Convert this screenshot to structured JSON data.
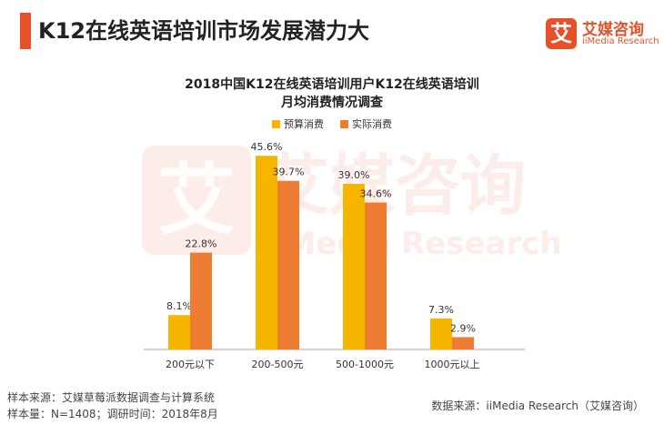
{
  "header": {
    "title": "K12在线英语培训市场发展潜力大",
    "logo_mark": "艾",
    "logo_cn": "艾媒咨询",
    "logo_en": "iiMedia Research"
  },
  "watermark": {
    "mark": "艾",
    "cn": "艾媒咨询",
    "en": "iiMedia Research"
  },
  "colors": {
    "accent": "#e8502a",
    "budget": "#f7b500",
    "actual": "#ee7c33"
  },
  "chart_data": {
    "type": "bar",
    "title_line1": "2018中国K12在线英语培训用户K12在线英语培训",
    "title_line2": "月均消费情况调查",
    "categories": [
      "200元以下",
      "200-500元",
      "500-1000元",
      "1000元以上"
    ],
    "series": [
      {
        "name": "预算消费",
        "values": [
          8.1,
          45.6,
          39.0,
          7.3
        ],
        "labels": [
          "8.1%",
          "45.6%",
          "39.0%",
          "7.3%"
        ]
      },
      {
        "name": "实际消费",
        "values": [
          22.8,
          39.7,
          34.6,
          2.9
        ],
        "labels": [
          "22.8%",
          "39.7%",
          "34.6%",
          "2.9%"
        ]
      }
    ],
    "ylim": [
      0,
      48
    ],
    "legend_position": "top",
    "grid": false
  },
  "footer": {
    "source_left_1": "样本来源：艾媒草莓派数据调查与计算系统",
    "source_left_2": "样本量：N=1408；调研时间：2018年8月",
    "source_right": "数据来源：iiMedia Research（艾媒咨询）"
  }
}
